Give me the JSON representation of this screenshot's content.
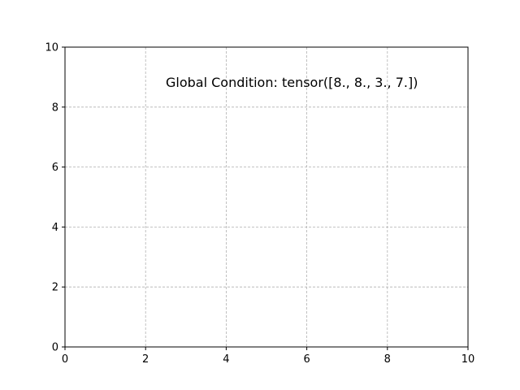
{
  "chart_data": {
    "type": "scatter",
    "title": "",
    "xlabel": "",
    "ylabel": "",
    "xlim": [
      0,
      10
    ],
    "ylim": [
      0,
      10
    ],
    "x_ticks": [
      0,
      2,
      4,
      6,
      8,
      10
    ],
    "y_ticks": [
      0,
      2,
      4,
      6,
      8,
      10
    ],
    "x_tick_labels": [
      "0",
      "2",
      "4",
      "6",
      "8",
      "10"
    ],
    "y_tick_labels": [
      "0",
      "2",
      "4",
      "6",
      "8",
      "10"
    ],
    "grid": true,
    "grid_style": "dashed",
    "series": [],
    "annotations": [
      {
        "text": "Global Condition: tensor([8., 8., 3., 7.])",
        "x": 2.5,
        "y": 8.8
      }
    ]
  },
  "colors": {
    "axis": "#000000",
    "grid": "#b0b0b0",
    "background": "#ffffff"
  }
}
